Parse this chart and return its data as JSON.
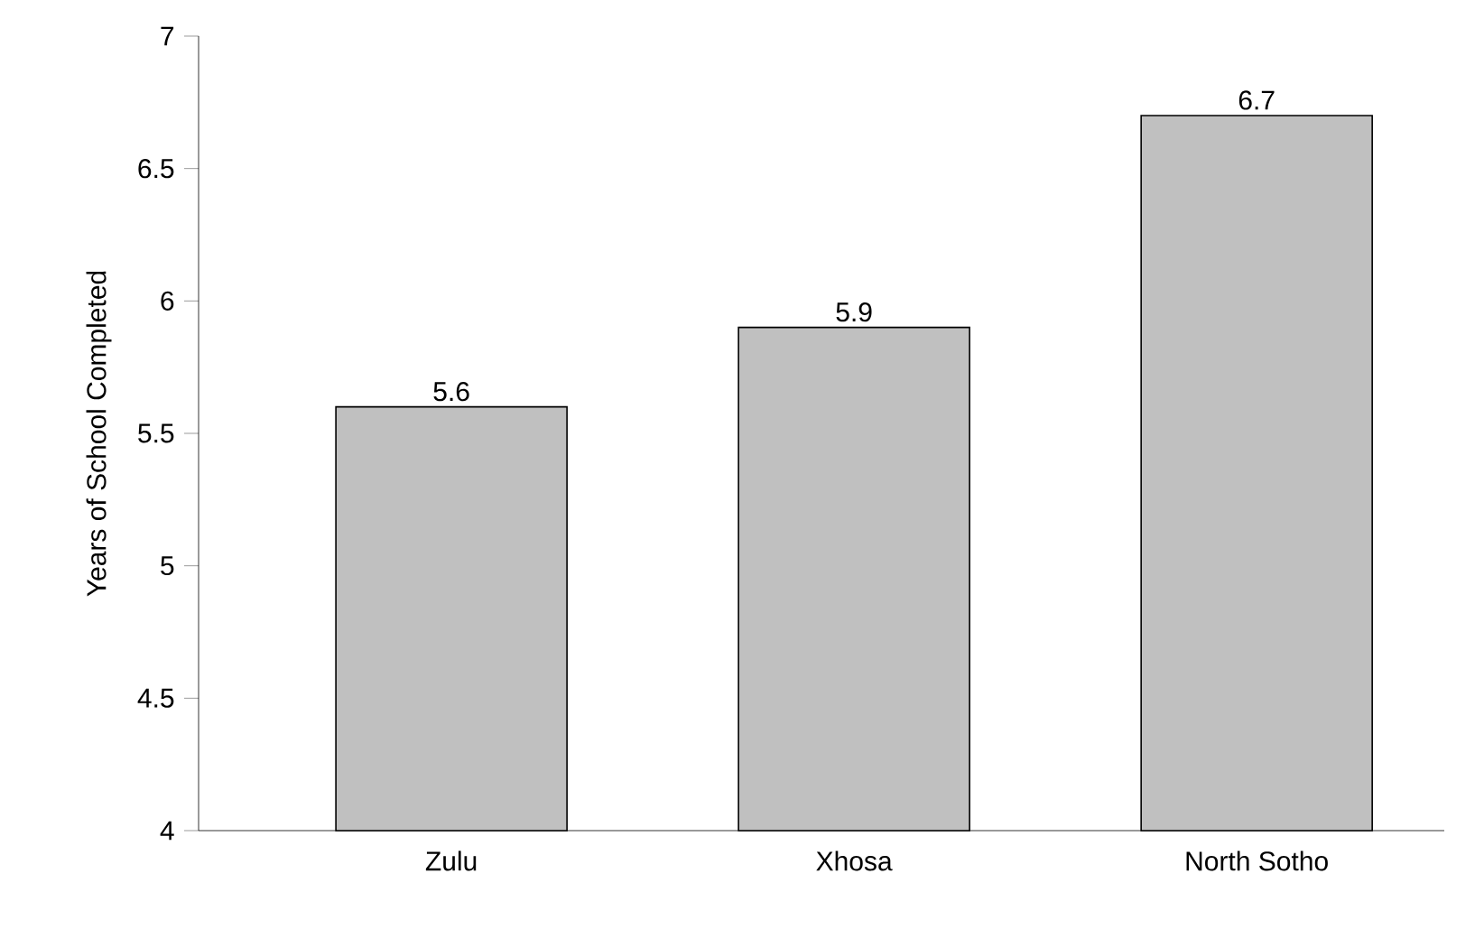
{
  "chart_data": {
    "type": "bar",
    "ylabel": "Years of School Completed",
    "categories": [
      "Zulu",
      "Xhosa",
      "North Sotho"
    ],
    "values": [
      5.6,
      5.9,
      6.7
    ],
    "color": "#c0c0c0",
    "data_labels": true,
    "ylim": [
      4,
      7
    ],
    "yticks": [
      4,
      4.5,
      5,
      5.5,
      6,
      6.5,
      7
    ],
    "grid": false
  }
}
